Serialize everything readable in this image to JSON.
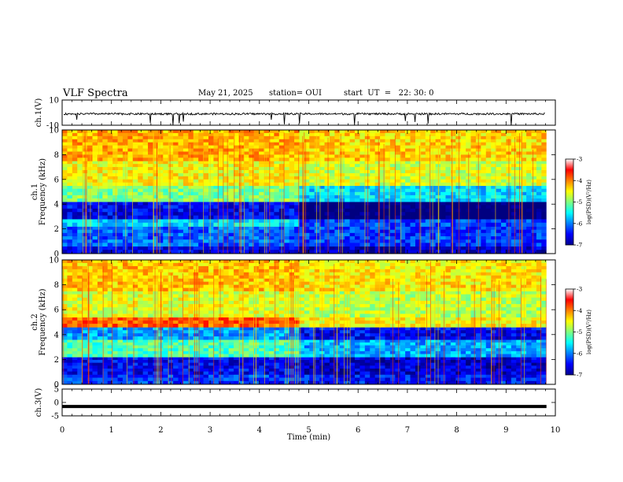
{
  "header": {
    "title": "VLF Spectra",
    "date": "May 21, 2025",
    "station": "station= OUI",
    "start": "start  UT  =   22: 30: 0"
  },
  "chart_data": [
    {
      "type": "line",
      "name": "ch1-waveform",
      "ylabel": "ch.1(V)",
      "ylim": [
        -10,
        10
      ],
      "yticks": [
        "10",
        "-10"
      ],
      "baseline_v": -1.0,
      "noise_amp_v": 1.5
    },
    {
      "type": "heatmap",
      "name": "ch1-spectrogram",
      "ylabel": "Frequency  (kHz)",
      "channel_label": "ch.1",
      "ylim": [
        0,
        10
      ],
      "yticks": [
        "0",
        "2",
        "4",
        "6",
        "8",
        "10"
      ],
      "colorbar": {
        "label": "log(PSD)(V²/Hz)",
        "ticks": [
          "-3",
          "-4",
          "-5",
          "-6",
          "-7"
        ],
        "range": [
          -7,
          -3
        ]
      },
      "bands": [
        {
          "f0": 0.0,
          "f1": 0.6,
          "level": 0.1
        },
        {
          "f0": 0.6,
          "f1": 2.2,
          "level": 0.22
        },
        {
          "f0": 2.2,
          "f1": 2.8,
          "level": 0.35
        },
        {
          "f0": 2.8,
          "f1": 4.2,
          "level": 0.12
        },
        {
          "f0": 4.2,
          "f1": 5.5,
          "level": 0.5
        },
        {
          "f0": 5.5,
          "f1": 7.5,
          "level": 0.62
        },
        {
          "f0": 7.5,
          "f1": 10.0,
          "level": 0.7
        }
      ],
      "transition_min": 4.8
    },
    {
      "type": "heatmap",
      "name": "ch2-spectrogram",
      "ylabel": "Frequency  (kHz)",
      "channel_label": "ch.2",
      "ylim": [
        0,
        10
      ],
      "yticks": [
        "0",
        "2",
        "4",
        "6",
        "8",
        "10"
      ],
      "colorbar": {
        "label": "log(PSD)(V²/Hz)",
        "ticks": [
          "-3",
          "-4",
          "-5",
          "-6",
          "-7"
        ],
        "range": [
          -7,
          -3
        ]
      },
      "bands": [
        {
          "f0": 0.0,
          "f1": 0.8,
          "level": 0.18
        },
        {
          "f0": 0.8,
          "f1": 2.2,
          "level": 0.12
        },
        {
          "f0": 2.2,
          "f1": 3.6,
          "level": 0.45
        },
        {
          "f0": 3.6,
          "f1": 4.6,
          "level": 0.28
        },
        {
          "f0": 4.6,
          "f1": 5.4,
          "level": 0.78
        },
        {
          "f0": 5.4,
          "f1": 7.5,
          "level": 0.6
        },
        {
          "f0": 7.5,
          "f1": 10.0,
          "level": 0.68
        }
      ],
      "transition_min": 4.8
    },
    {
      "type": "line",
      "name": "ch3-waveform",
      "ylabel": "ch.3(V)",
      "ylim": [
        -5,
        5
      ],
      "yticks": [
        "5",
        "0",
        "-5"
      ],
      "baseline_v": -1.5
    }
  ],
  "xaxis": {
    "label": "Time  (min)",
    "range": [
      0,
      10
    ],
    "ticks": [
      "0",
      "1",
      "2",
      "3",
      "4",
      "5",
      "6",
      "7",
      "8",
      "9",
      "10"
    ],
    "data_end_min": 9.82
  }
}
